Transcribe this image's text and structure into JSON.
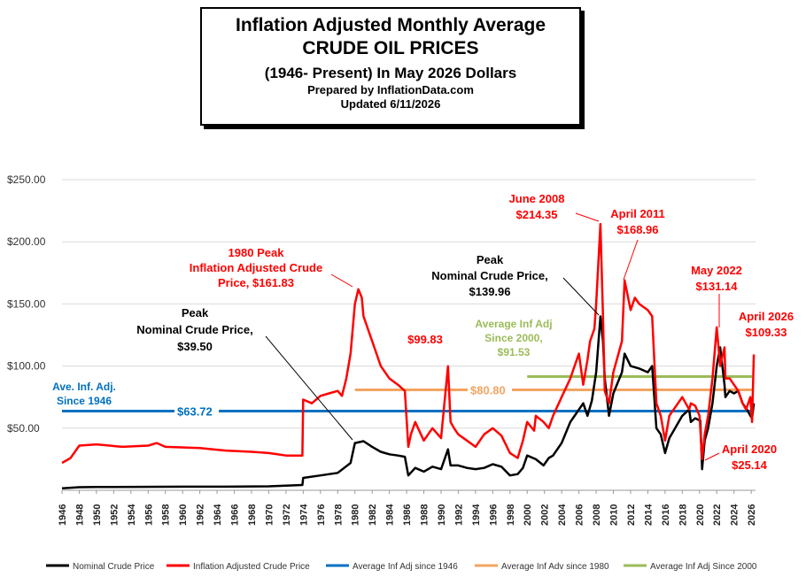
{
  "title": {
    "line1": "Inflation Adjusted Monthly Average",
    "line2": "CRUDE OIL PRICES",
    "line3": "(1946- Present) In May 2026 Dollars",
    "line4": "Prepared by InflationData.com",
    "line5": "Updated 6/11/2026"
  },
  "colors": {
    "nominal": "#000000",
    "adjusted": "#ff0000",
    "avg1946": "#0070c0",
    "avg1980": "#f4a460",
    "avg2000": "#9bbb59"
  },
  "chart_data": {
    "type": "line",
    "ylim": [
      0,
      250
    ],
    "xlim": [
      1946,
      2026.5
    ],
    "y_ticks": [
      50,
      100,
      150,
      200,
      250
    ],
    "y_tick_labels": [
      "$50.00",
      "$100.00",
      "$150.00",
      "$200.00",
      "$250.00"
    ],
    "x_ticks": [
      1946,
      1948,
      1950,
      1952,
      1954,
      1956,
      1958,
      1960,
      1962,
      1964,
      1966,
      1968,
      1970,
      1972,
      1974,
      1976,
      1978,
      1980,
      1982,
      1984,
      1986,
      1988,
      1990,
      1992,
      1994,
      1996,
      1998,
      2000,
      2002,
      2004,
      2006,
      2008,
      2010,
      2012,
      2014,
      2016,
      2018,
      2020,
      2022,
      2024,
      2026
    ],
    "series": [
      {
        "name": "Nominal Crude Price",
        "color": "#000000",
        "x": [
          1946,
          1948,
          1950,
          1955,
          1960,
          1965,
          1970,
          1973.9,
          1974,
          1976,
          1978,
          1979.5,
          1980.0,
          1981,
          1982,
          1983,
          1984,
          1985,
          1985.8,
          1986.2,
          1987,
          1988,
          1989,
          1990.0,
          1990.8,
          1991.1,
          1992,
          1993,
          1994,
          1995,
          1996,
          1997,
          1998,
          1998.9,
          1999.5,
          2000,
          2001,
          2001.9,
          2002.5,
          2003,
          2004,
          2005,
          2005.7,
          2006.5,
          2007,
          2007.5,
          2008.0,
          2008.5,
          2008.8,
          2009.0,
          2009.5,
          2010,
          2011,
          2011.3,
          2012,
          2013,
          2014,
          2014.5,
          2015,
          2015.5,
          2016.0,
          2016.5,
          2017,
          2018,
          2018.8,
          2019,
          2019.5,
          2020.1,
          2020.3,
          2020.6,
          2021,
          2021.5,
          2022,
          2022.4,
          2022.9,
          2023,
          2023.5,
          2024,
          2024.5,
          2025,
          2025.5,
          2025.9,
          2026.1,
          2026.3
        ],
        "y": [
          1.6,
          2.5,
          2.6,
          2.8,
          2.9,
          2.9,
          3.2,
          4.3,
          10,
          12,
          14,
          22,
          38,
          39.5,
          35,
          31,
          29,
          28,
          27,
          12,
          18,
          15,
          19,
          17,
          33,
          20,
          20,
          18,
          17,
          18,
          21,
          19,
          12,
          13,
          18,
          28,
          25,
          20,
          26,
          28,
          38,
          55,
          62,
          70,
          60,
          72,
          95,
          139.96,
          120,
          90,
          60,
          78,
          95,
          110,
          100,
          98,
          95,
          100,
          50,
          45,
          30,
          42,
          48,
          60,
          65,
          55,
          58,
          56,
          17,
          40,
          50,
          70,
          100,
          115,
          85,
          75,
          80,
          78,
          80,
          70,
          65,
          60,
          58,
          70
        ]
      },
      {
        "name": "Inflation Adjusted Crude Price",
        "color": "#ff0000",
        "x": [
          1946,
          1947,
          1948,
          1950,
          1953,
          1956,
          1957,
          1958,
          1962,
          1965,
          1968,
          1970,
          1972,
          1973.9,
          1974.0,
          1975,
          1976,
          1977,
          1978,
          1978.5,
          1979,
          1979.5,
          1980.0,
          1980.4,
          1980.8,
          1981,
          1982,
          1983,
          1984,
          1985,
          1985.8,
          1986.2,
          1986.5,
          1987,
          1988,
          1989,
          1990.0,
          1990.8,
          1991.1,
          1991.5,
          1992,
          1993,
          1994,
          1995,
          1996,
          1997,
          1998,
          1998.9,
          1999.5,
          2000,
          2000.8,
          2001,
          2001.9,
          2002.5,
          2003,
          2004,
          2005,
          2005.5,
          2006,
          2006.5,
          2007,
          2007.3,
          2007.8,
          2008.0,
          2008.5,
          2008.8,
          2009.0,
          2009.5,
          2010,
          2011.0,
          2011.3,
          2012,
          2012.5,
          2013,
          2014,
          2014.5,
          2015,
          2015.5,
          2016.0,
          2016.5,
          2017,
          2018,
          2018.8,
          2019,
          2019.5,
          2020.0,
          2020.3,
          2020.6,
          2021,
          2021.5,
          2022,
          2022.4,
          2022.9,
          2023,
          2023.5,
          2024,
          2024.5,
          2025,
          2025.4,
          2025.9,
          2026.1,
          2026.3
        ],
        "y": [
          22,
          26,
          36,
          37,
          35,
          36,
          38,
          35,
          34,
          32,
          31,
          30,
          28,
          28,
          73,
          70,
          76,
          78,
          80,
          76,
          90,
          110,
          150,
          161.83,
          155,
          140,
          120,
          100,
          90,
          85,
          80,
          35,
          45,
          55,
          40,
          50,
          42,
          99.83,
          55,
          50,
          45,
          40,
          35,
          45,
          50,
          44,
          30,
          26,
          40,
          55,
          48,
          60,
          55,
          50,
          60,
          75,
          90,
          100,
          110,
          85,
          105,
          120,
          130,
          150,
          214.35,
          140,
          80,
          70,
          95,
          120,
          168.96,
          145,
          155,
          150,
          145,
          140,
          70,
          60,
          40,
          60,
          65,
          75,
          65,
          70,
          68,
          60,
          25.14,
          45,
          60,
          90,
          131.14,
          100,
          115,
          90,
          90,
          85,
          80,
          70,
          65,
          75,
          55,
          109.33
        ]
      }
    ],
    "reference_lines": [
      {
        "name": "Average Inf Adj since 1946",
        "value": 63.72,
        "label": "$63.72",
        "x_start": 1946,
        "color": "#0070c0"
      },
      {
        "name": "Average Inf Adv since 1980",
        "value": 80.8,
        "label": "$80.80",
        "x_start": 1980,
        "color": "#f4a460"
      },
      {
        "name": "Average Inf Adj Since 2000",
        "value": 91.53,
        "label": "",
        "x_start": 2000,
        "color": "#9bbb59"
      }
    ],
    "annotations": {
      "peak1980_adj": [
        "1980 Peak",
        "Inflation Adjusted Crude",
        "Price,  $161.83"
      ],
      "peak_nominal_1980": [
        "Peak",
        "Nominal Crude Price,",
        "$39.50"
      ],
      "peak_nominal_2008": [
        "Peak",
        "Nominal Crude Price,",
        "$139.96"
      ],
      "jun2008": [
        "June 2008",
        "$214.35"
      ],
      "apr2011": [
        "April 2011",
        "$168.96"
      ],
      "may2022": [
        "May 2022",
        "$131.14"
      ],
      "apr2026": [
        "April 2026",
        "$109.33"
      ],
      "apr2020": [
        "April 2020",
        "$25.14"
      ],
      "p1990": [
        "$99.83"
      ],
      "avg1946": [
        "Ave. Inf. Adj.",
        "Since 1946"
      ],
      "avg2000": [
        "Average Inf Adj",
        "Since 2000,",
        "$91.53"
      ]
    },
    "legend_position": "bottom"
  }
}
